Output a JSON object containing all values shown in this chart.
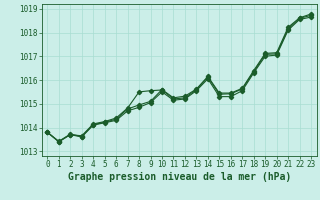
{
  "xlabel": "Graphe pression niveau de la mer (hPa)",
  "ylim": [
    1012.8,
    1019.2
  ],
  "xlim": [
    -0.5,
    23.5
  ],
  "yticks": [
    1013,
    1014,
    1015,
    1016,
    1017,
    1018,
    1019
  ],
  "xticks": [
    0,
    1,
    2,
    3,
    4,
    5,
    6,
    7,
    8,
    9,
    10,
    11,
    12,
    13,
    14,
    15,
    16,
    17,
    18,
    19,
    20,
    21,
    22,
    23
  ],
  "bg_color": "#cbeee8",
  "grid_color": "#a8ddd2",
  "line_color": "#1a5c2a",
  "s1": [
    1013.8,
    1013.4,
    1013.7,
    1013.6,
    1014.1,
    1014.2,
    1014.3,
    1014.7,
    1014.85,
    1015.05,
    1015.5,
    1015.15,
    1015.2,
    1015.55,
    1016.05,
    1015.3,
    1015.3,
    1015.55,
    1016.3,
    1017.0,
    1017.05,
    1018.1,
    1018.55,
    1018.65
  ],
  "s2": [
    1013.8,
    1013.4,
    1013.7,
    1013.65,
    1014.15,
    1014.25,
    1014.4,
    1014.82,
    1015.5,
    1015.55,
    1015.58,
    1015.2,
    1015.25,
    1015.6,
    1016.12,
    1015.4,
    1015.42,
    1015.62,
    1016.35,
    1017.08,
    1017.1,
    1018.15,
    1018.6,
    1018.72
  ],
  "s3": [
    1013.8,
    1013.42,
    1013.72,
    1013.62,
    1014.12,
    1014.22,
    1014.35,
    1014.78,
    1014.95,
    1015.1,
    1015.6,
    1015.25,
    1015.32,
    1015.62,
    1016.15,
    1015.45,
    1015.45,
    1015.65,
    1016.4,
    1017.12,
    1017.15,
    1018.22,
    1018.62,
    1018.78
  ],
  "tick_fontsize": 5.5,
  "xlabel_fontsize": 7.0,
  "marker_size": 2.2,
  "line_width": 0.8
}
